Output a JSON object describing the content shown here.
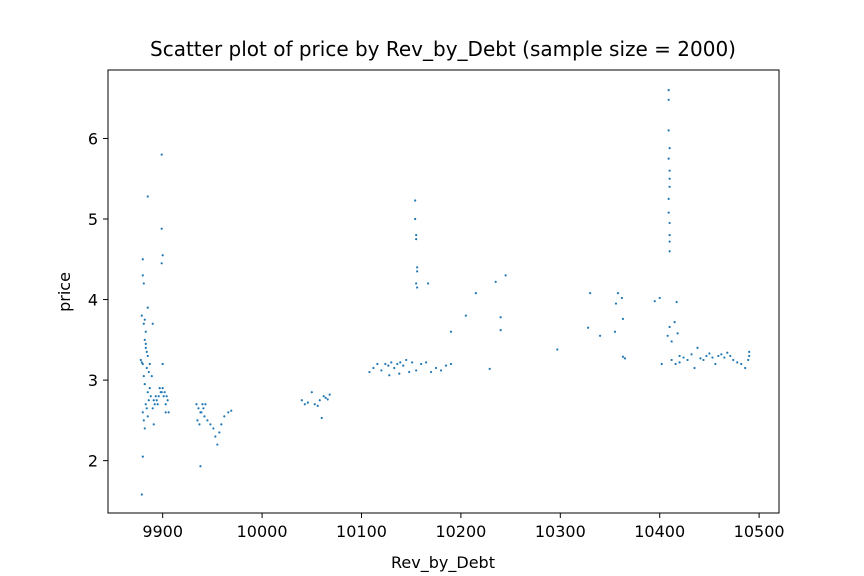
{
  "chart_data": {
    "type": "scatter",
    "title": "Scatter plot of price by Rev_by_Debt (sample size = 2000)",
    "xlabel": "Rev_by_Debt",
    "ylabel": "price",
    "xlim": [
      9845,
      10520
    ],
    "ylim": [
      1.35,
      6.85
    ],
    "xticks": [
      9900,
      10000,
      10100,
      10200,
      10300,
      10400,
      10500
    ],
    "yticks": [
      2,
      3,
      4,
      5,
      6
    ],
    "grid": false,
    "legend": "none",
    "marker_color": "#1f77b4",
    "points": [
      [
        9878,
        3.25
      ],
      [
        9879,
        3.22
      ],
      [
        9880,
        3.2
      ],
      [
        9881,
        3.05
      ],
      [
        9882,
        2.95
      ],
      [
        9883,
        3.4
      ],
      [
        9884,
        3.35
      ],
      [
        9885,
        3.3
      ],
      [
        9886,
        3.1
      ],
      [
        9887,
        2.9
      ],
      [
        9888,
        2.8
      ],
      [
        9889,
        3.05
      ],
      [
        9882,
        3.5
      ],
      [
        9883,
        3.45
      ],
      [
        9884,
        3.15
      ],
      [
        9885,
        2.85
      ],
      [
        9886,
        2.75
      ],
      [
        9887,
        3.2
      ],
      [
        9880,
        2.6
      ],
      [
        9881,
        2.5
      ],
      [
        9882,
        2.4
      ],
      [
        9883,
        2.7
      ],
      [
        9884,
        2.65
      ],
      [
        9885,
        2.55
      ],
      [
        9881,
        3.7
      ],
      [
        9882,
        3.75
      ],
      [
        9883,
        3.6
      ],
      [
        9880,
        4.5
      ],
      [
        9880,
        4.3
      ],
      [
        9881,
        4.2
      ],
      [
        9879,
        3.8
      ],
      [
        9885,
        3.9
      ],
      [
        9880,
        2.05
      ],
      [
        9879,
        1.58
      ],
      [
        9885,
        5.28
      ],
      [
        9891,
        2.75
      ],
      [
        9893,
        2.8
      ],
      [
        9895,
        2.7
      ],
      [
        9897,
        2.9
      ],
      [
        9899,
        2.85
      ],
      [
        9901,
        2.8
      ],
      [
        9903,
        2.7
      ],
      [
        9905,
        2.75
      ],
      [
        9906,
        2.6
      ],
      [
        9890,
        2.65
      ],
      [
        9892,
        2.7
      ],
      [
        9894,
        2.75
      ],
      [
        9896,
        2.8
      ],
      [
        9898,
        2.85
      ],
      [
        9900,
        2.9
      ],
      [
        9902,
        2.85
      ],
      [
        9904,
        2.8
      ],
      [
        9903,
        2.6
      ],
      [
        9890,
        3.7
      ],
      [
        9891,
        2.45
      ],
      [
        9900,
        3.2
      ],
      [
        9899,
        5.8
      ],
      [
        9899,
        4.88
      ],
      [
        9900,
        4.55
      ],
      [
        9899,
        4.45
      ],
      [
        9934,
        2.7
      ],
      [
        9936,
        2.65
      ],
      [
        9938,
        2.6
      ],
      [
        9940,
        2.7
      ],
      [
        9942,
        2.55
      ],
      [
        9935,
        2.5
      ],
      [
        9937,
        2.45
      ],
      [
        9939,
        2.6
      ],
      [
        9941,
        2.65
      ],
      [
        9943,
        2.7
      ],
      [
        9945,
        2.5
      ],
      [
        9948,
        2.45
      ],
      [
        9951,
        2.4
      ],
      [
        9953,
        2.3
      ],
      [
        9955,
        2.2
      ],
      [
        9957,
        2.35
      ],
      [
        9959,
        2.45
      ],
      [
        9962,
        2.55
      ],
      [
        9966,
        2.6
      ],
      [
        9969,
        2.62
      ],
      [
        9938,
        1.93
      ],
      [
        10040,
        2.75
      ],
      [
        10043,
        2.7
      ],
      [
        10046,
        2.72
      ],
      [
        10050,
        2.85
      ],
      [
        10053,
        2.7
      ],
      [
        10056,
        2.68
      ],
      [
        10058,
        2.75
      ],
      [
        10060,
        2.53
      ],
      [
        10062,
        2.8
      ],
      [
        10064,
        2.78
      ],
      [
        10066,
        2.76
      ],
      [
        10068,
        2.82
      ],
      [
        10108,
        3.1
      ],
      [
        10112,
        3.15
      ],
      [
        10116,
        3.2
      ],
      [
        10120,
        3.12
      ],
      [
        10124,
        3.2
      ],
      [
        10127,
        3.18
      ],
      [
        10130,
        3.22
      ],
      [
        10133,
        3.15
      ],
      [
        10136,
        3.2
      ],
      [
        10139,
        3.22
      ],
      [
        10142,
        3.18
      ],
      [
        10145,
        3.25
      ],
      [
        10148,
        3.1
      ],
      [
        10151,
        3.22
      ],
      [
        10155,
        3.12
      ],
      [
        10160,
        3.2
      ],
      [
        10165,
        3.22
      ],
      [
        10170,
        3.1
      ],
      [
        10175,
        3.15
      ],
      [
        10180,
        3.12
      ],
      [
        10185,
        3.18
      ],
      [
        10190,
        3.2
      ],
      [
        10229,
        3.14
      ],
      [
        10138,
        3.08
      ],
      [
        10128,
        3.06
      ],
      [
        10154,
        5.23
      ],
      [
        10154,
        5.0
      ],
      [
        10155,
        4.8
      ],
      [
        10155,
        4.75
      ],
      [
        10156,
        4.4
      ],
      [
        10156,
        4.35
      ],
      [
        10155,
        4.2
      ],
      [
        10156,
        4.15
      ],
      [
        10167,
        4.2
      ],
      [
        10190,
        3.6
      ],
      [
        10205,
        3.8
      ],
      [
        10215,
        4.08
      ],
      [
        10235,
        4.22
      ],
      [
        10240,
        3.78
      ],
      [
        10240,
        3.62
      ],
      [
        10245,
        4.3
      ],
      [
        10297,
        3.38
      ],
      [
        10328,
        3.65
      ],
      [
        10330,
        4.08
      ],
      [
        10340,
        3.55
      ],
      [
        10355,
        3.6
      ],
      [
        10356,
        3.95
      ],
      [
        10358,
        4.08
      ],
      [
        10362,
        4.02
      ],
      [
        10363,
        3.76
      ],
      [
        10363,
        3.29
      ],
      [
        10365,
        3.27
      ],
      [
        10395,
        3.98
      ],
      [
        10400,
        4.02
      ],
      [
        10402,
        3.2
      ],
      [
        10409,
        6.6
      ],
      [
        10409,
        6.48
      ],
      [
        10409,
        6.1
      ],
      [
        10410,
        5.88
      ],
      [
        10410,
        5.6
      ],
      [
        10410,
        5.4
      ],
      [
        10409,
        5.25
      ],
      [
        10409,
        5.08
      ],
      [
        10410,
        4.95
      ],
      [
        10410,
        4.8
      ],
      [
        10410,
        4.6
      ],
      [
        10409,
        5.75
      ],
      [
        10410,
        5.5
      ],
      [
        10410,
        4.72
      ],
      [
        10410,
        3.66
      ],
      [
        10408,
        3.55
      ],
      [
        10412,
        3.48
      ],
      [
        10415,
        3.72
      ],
      [
        10417,
        3.97
      ],
      [
        10418,
        3.58
      ],
      [
        10420,
        3.3
      ],
      [
        10412,
        3.25
      ],
      [
        10416,
        3.2
      ],
      [
        10420,
        3.22
      ],
      [
        10424,
        3.28
      ],
      [
        10428,
        3.25
      ],
      [
        10432,
        3.32
      ],
      [
        10435,
        3.15
      ],
      [
        10438,
        3.4
      ],
      [
        10441,
        3.27
      ],
      [
        10444,
        3.25
      ],
      [
        10447,
        3.3
      ],
      [
        10450,
        3.33
      ],
      [
        10453,
        3.28
      ],
      [
        10456,
        3.2
      ],
      [
        10459,
        3.3
      ],
      [
        10462,
        3.32
      ],
      [
        10465,
        3.28
      ],
      [
        10468,
        3.34
      ],
      [
        10471,
        3.3
      ],
      [
        10474,
        3.25
      ],
      [
        10478,
        3.22
      ],
      [
        10482,
        3.2
      ],
      [
        10486,
        3.15
      ],
      [
        10489,
        3.25
      ],
      [
        10490,
        3.3
      ],
      [
        10490,
        3.35
      ]
    ]
  }
}
